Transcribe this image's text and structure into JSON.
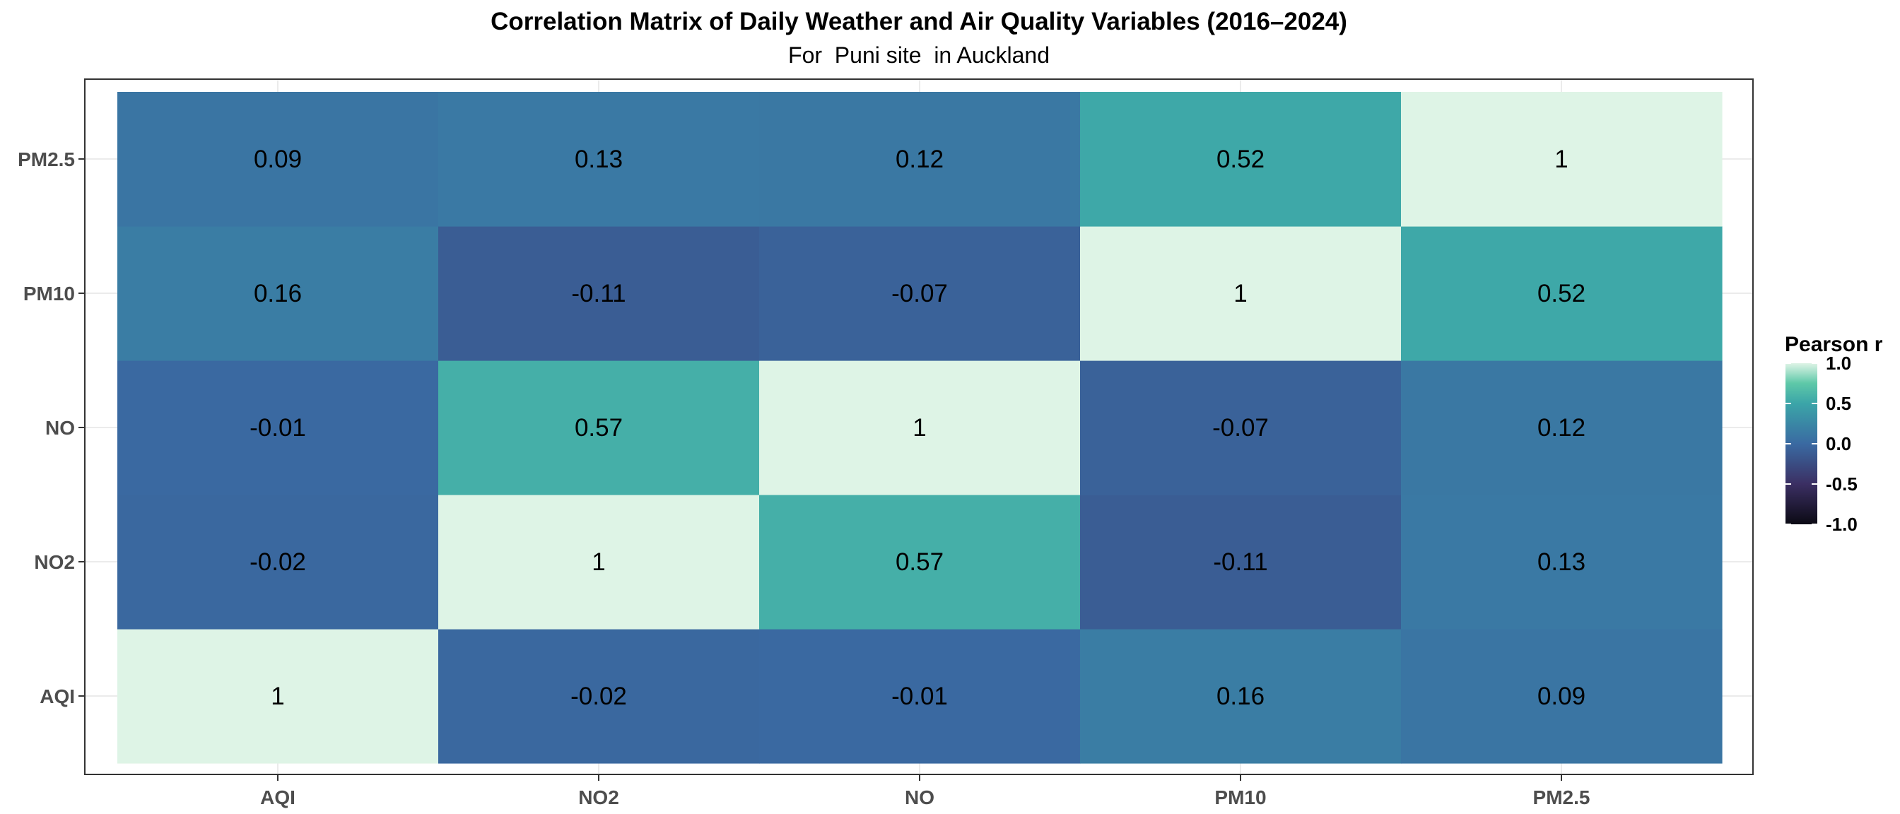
{
  "chart_data": {
    "type": "heatmap",
    "title": "Correlation Matrix of Daily Weather and Air Quality Variables (2016–2024)",
    "subtitle": "For  Puni site  in Auckland",
    "x_categories": [
      "AQI",
      "NO2",
      "NO",
      "PM10",
      "PM2.5"
    ],
    "y_categories": [
      "AQI",
      "NO2",
      "NO",
      "PM10",
      "PM2.5"
    ],
    "values": [
      [
        1,
        -0.02,
        -0.01,
        0.16,
        0.09
      ],
      [
        -0.02,
        1,
        0.57,
        -0.11,
        0.13
      ],
      [
        -0.01,
        0.57,
        1,
        -0.07,
        0.12
      ],
      [
        0.16,
        -0.11,
        -0.07,
        1,
        0.52
      ],
      [
        0.09,
        0.13,
        0.12,
        0.52,
        1
      ]
    ],
    "value_labels": [
      [
        "1",
        "-0.02",
        "-0.01",
        "0.16",
        "0.09"
      ],
      [
        "-0.02",
        "1",
        "0.57",
        "-0.11",
        "0.13"
      ],
      [
        "-0.01",
        "0.57",
        "1",
        "-0.07",
        "0.12"
      ],
      [
        "0.16",
        "-0.11",
        "-0.07",
        "1",
        "0.52"
      ],
      [
        "0.09",
        "0.13",
        "0.12",
        "0.52",
        "1"
      ]
    ],
    "legend": {
      "title": "Pearson r",
      "position": "right",
      "range": [
        -1,
        1
      ],
      "ticks": [
        1,
        0.5,
        0,
        -0.5,
        -1
      ],
      "tick_labels": [
        "1.0",
        "0.5",
        "0.0",
        "-0.5",
        "-1.0"
      ],
      "color_stops": [
        {
          "value": -1,
          "color": "#0b0a14"
        },
        {
          "value": -0.5,
          "color": "#3b2f63"
        },
        {
          "value": 0,
          "color": "#3a6aa2"
        },
        {
          "value": 0.5,
          "color": "#3ba5a8"
        },
        {
          "value": 0.75,
          "color": "#5ec8a8"
        },
        {
          "value": 1,
          "color": "#def4e6"
        }
      ]
    },
    "grid": true,
    "panel_border": true
  }
}
